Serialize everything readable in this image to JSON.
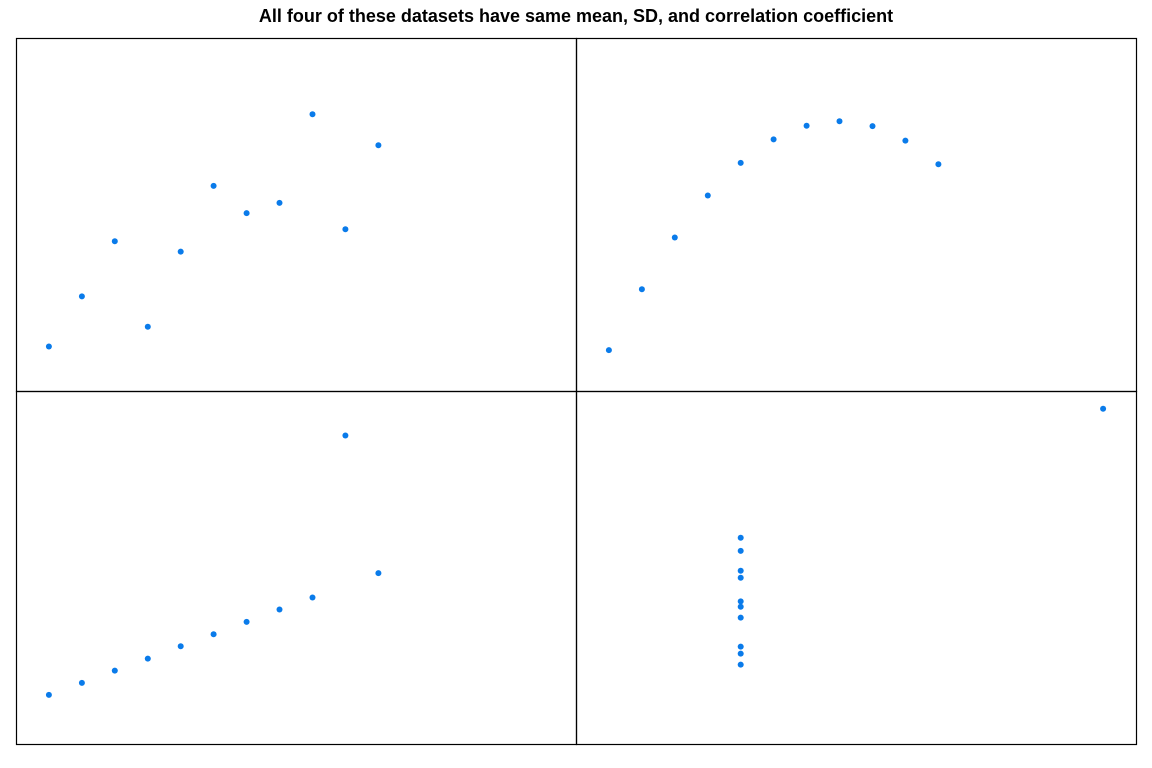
{
  "title": "All four of these datasets have same mean, SD, and correlation coefficient",
  "colors": {
    "point": "#0a7bea",
    "frame": "#000000",
    "background": "#ffffff"
  },
  "chart_data": [
    {
      "type": "scatter",
      "panel": "top-left",
      "x": [
        10,
        8,
        13,
        9,
        11,
        14,
        6,
        4,
        12,
        7,
        5
      ],
      "y": [
        8.04,
        6.95,
        7.58,
        8.81,
        8.33,
        9.96,
        7.24,
        4.26,
        10.84,
        4.82,
        5.68
      ],
      "xlim": [
        3,
        20
      ],
      "ylim": [
        3,
        13
      ],
      "axes_shown": false
    },
    {
      "type": "scatter",
      "panel": "top-right",
      "x": [
        10,
        8,
        13,
        9,
        11,
        14,
        6,
        4,
        12,
        7,
        5
      ],
      "y": [
        9.14,
        8.14,
        8.74,
        8.77,
        9.26,
        8.1,
        6.13,
        3.1,
        9.13,
        7.26,
        4.74
      ],
      "xlim": [
        3,
        20
      ],
      "ylim": [
        2,
        11.5
      ],
      "axes_shown": false
    },
    {
      "type": "scatter",
      "panel": "bottom-left",
      "x": [
        10,
        8,
        13,
        9,
        11,
        14,
        6,
        4,
        12,
        7,
        5
      ],
      "y": [
        7.46,
        6.77,
        12.74,
        7.11,
        7.81,
        8.84,
        6.08,
        5.39,
        8.15,
        6.42,
        5.73
      ],
      "xlim": [
        3,
        20
      ],
      "ylim": [
        4,
        14
      ],
      "axes_shown": false
    },
    {
      "type": "scatter",
      "panel": "bottom-right",
      "x": [
        8,
        8,
        8,
        8,
        8,
        8,
        8,
        19,
        8,
        8,
        8
      ],
      "y": [
        6.58,
        5.76,
        7.71,
        8.84,
        8.47,
        7.04,
        5.25,
        12.5,
        5.56,
        7.91,
        6.89
      ],
      "xlim": [
        3,
        20
      ],
      "ylim": [
        3,
        13
      ],
      "axes_shown": false
    }
  ]
}
